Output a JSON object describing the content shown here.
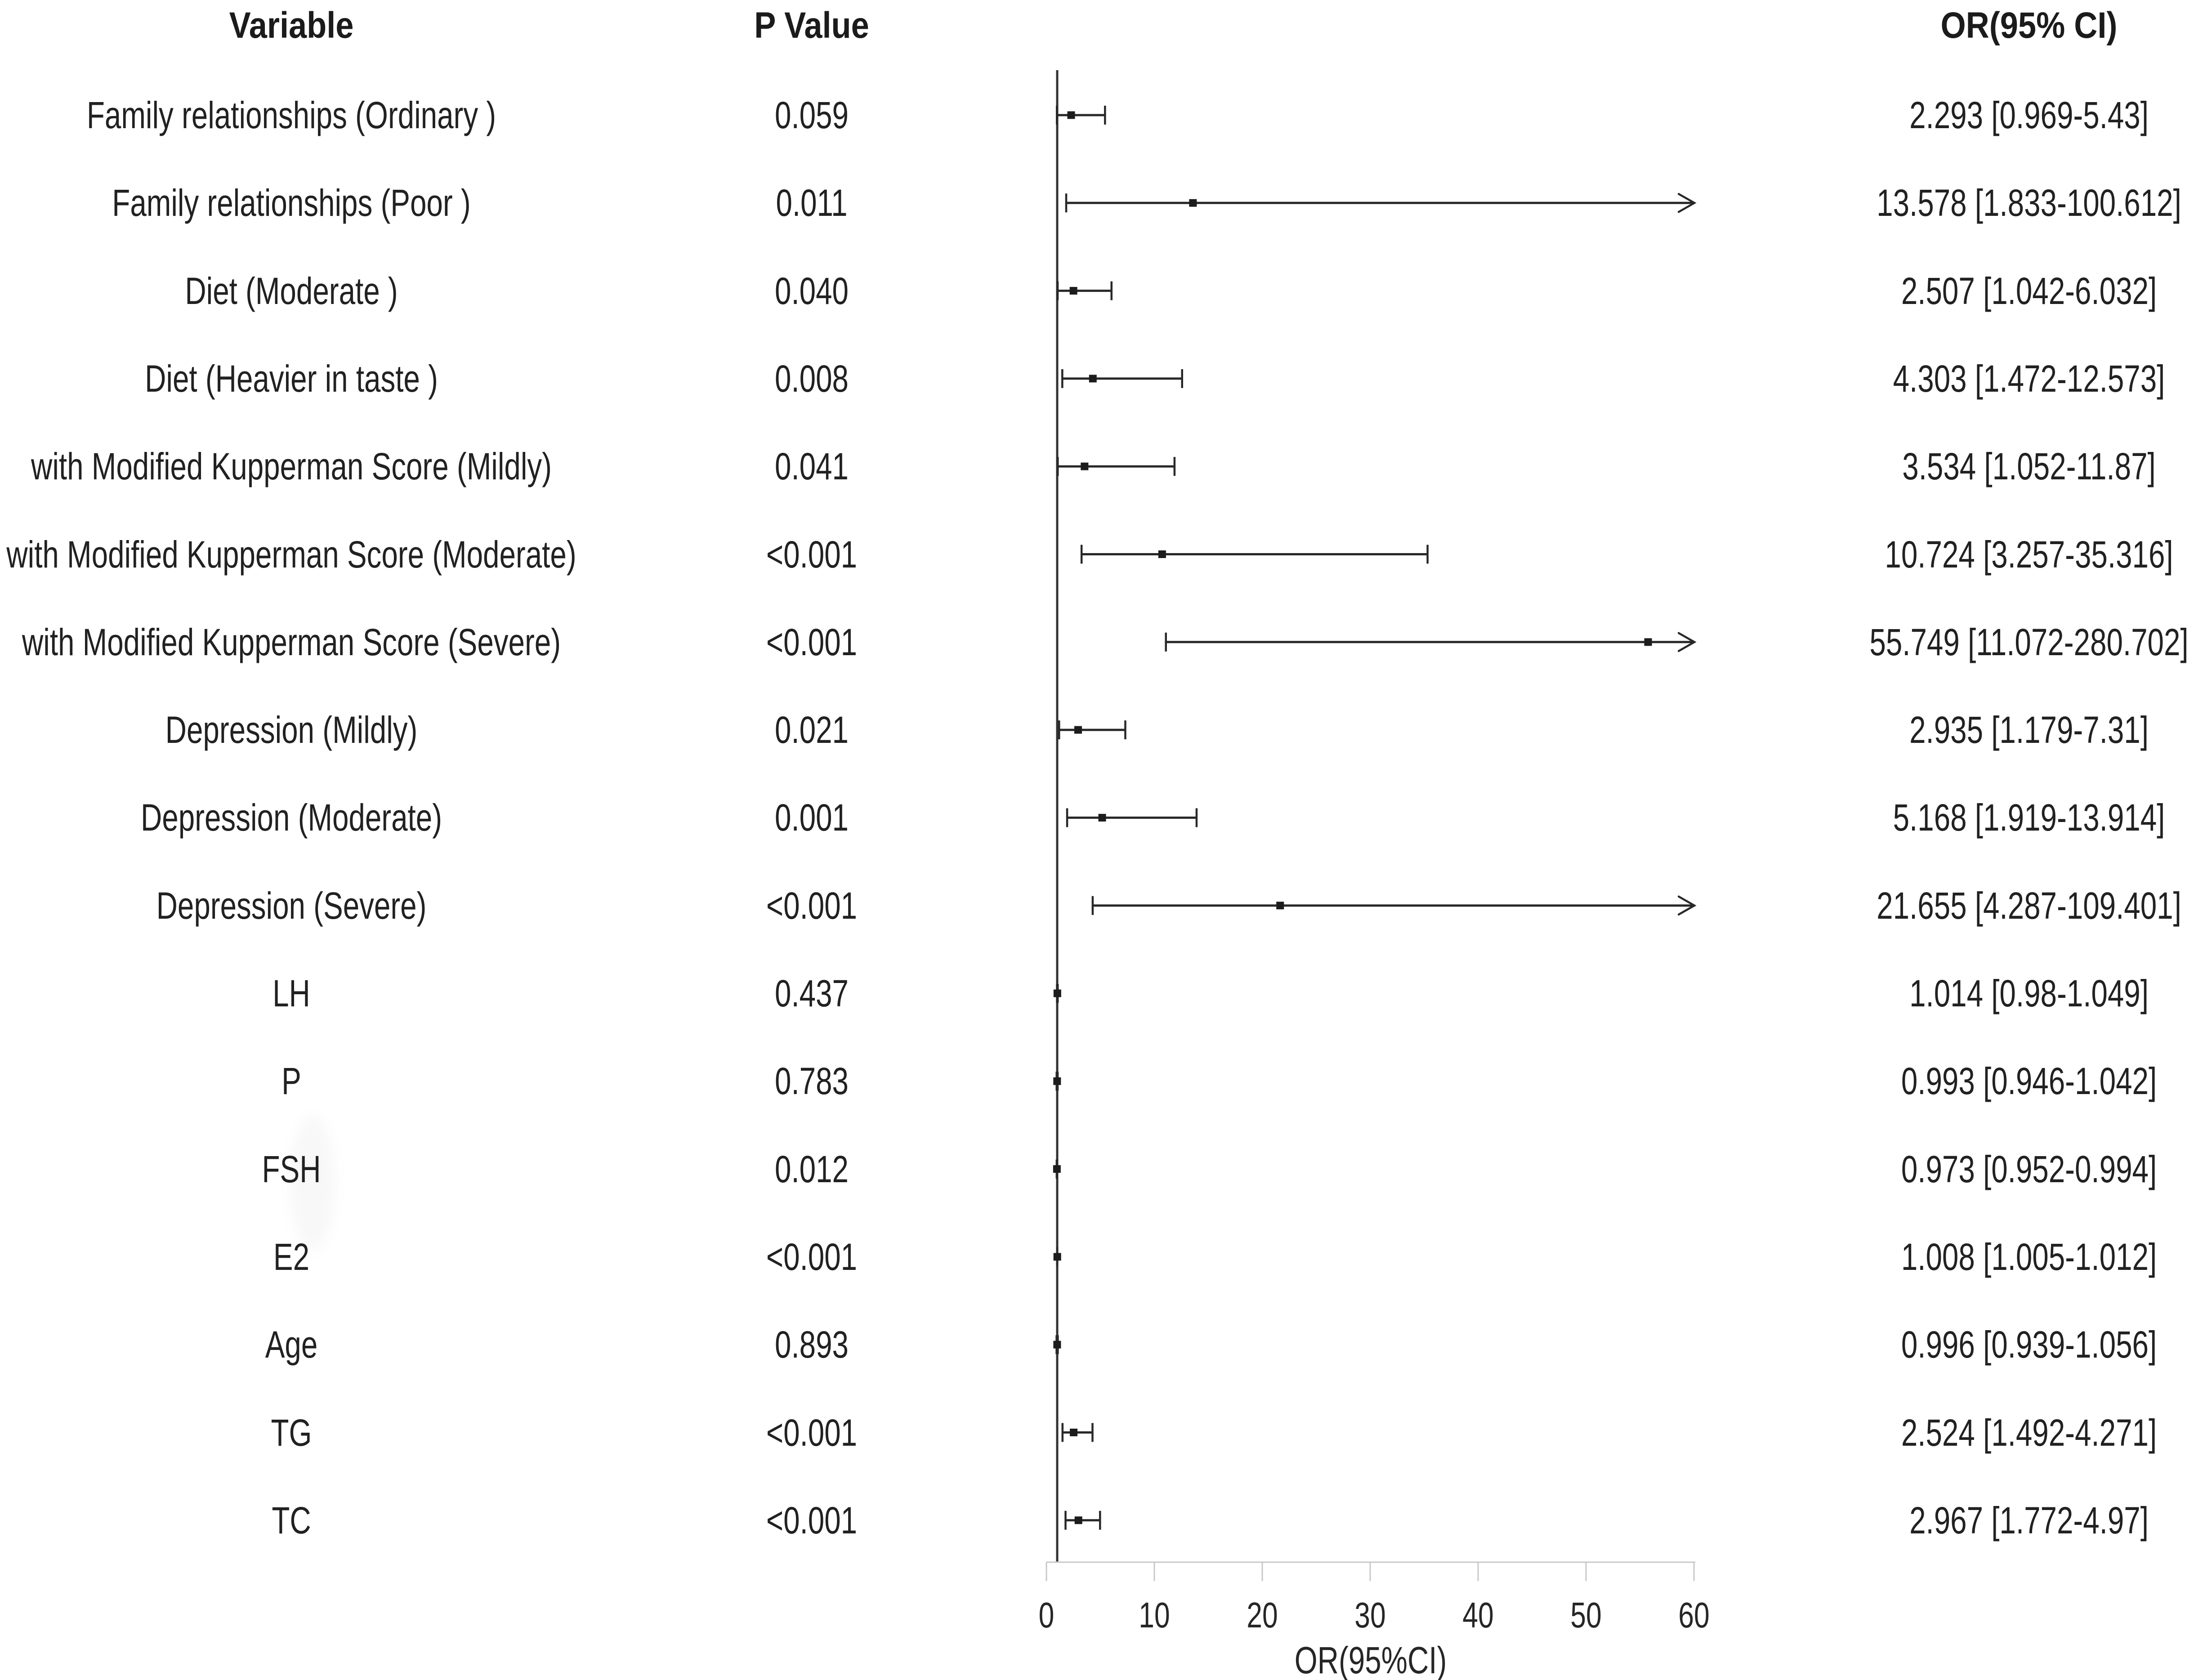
{
  "page": {
    "background": "#ffffff"
  },
  "table": {
    "headers": {
      "variable": "Variable",
      "p_value": "P Value",
      "or_ci": "OR(95% CI)"
    }
  },
  "chart_data": {
    "type": "forest",
    "title": "",
    "xlabel": "OR(95%CI)",
    "xlim": [
      0,
      60
    ],
    "x_ticks": [
      0,
      10,
      20,
      30,
      40,
      50,
      60
    ],
    "reference_value": 1,
    "arrow_clip_at": 60,
    "grid": false,
    "colors": {
      "text": "#212121",
      "bars": "#282828",
      "marker": "#1c1c1c",
      "axis": "#c8c8c8",
      "reference_line": "#333333"
    },
    "series": [
      {
        "variable": "Family relationships (Ordinary )",
        "p_value": "0.059",
        "or": 2.293,
        "ci_low": 0.969,
        "ci_high": 5.43,
        "or_ci_label": "2.293 [0.969-5.43]",
        "clipped": false
      },
      {
        "variable": "Family relationships (Poor )",
        "p_value": "0.011",
        "or": 13.578,
        "ci_low": 1.833,
        "ci_high": 100.612,
        "or_ci_label": "13.578 [1.833-100.612]",
        "clipped": true
      },
      {
        "variable": "Diet (Moderate )",
        "p_value": "0.040",
        "or": 2.507,
        "ci_low": 1.042,
        "ci_high": 6.032,
        "or_ci_label": "2.507 [1.042-6.032]",
        "clipped": false
      },
      {
        "variable": "Diet (Heavier in taste )",
        "p_value": "0.008",
        "or": 4.303,
        "ci_low": 1.472,
        "ci_high": 12.573,
        "or_ci_label": "4.303 [1.472-12.573]",
        "clipped": false
      },
      {
        "variable": "with Modified Kupperman Score (Mildly)",
        "p_value": "0.041",
        "or": 3.534,
        "ci_low": 1.052,
        "ci_high": 11.87,
        "or_ci_label": "3.534 [1.052-11.87]",
        "clipped": false
      },
      {
        "variable": "with Modified Kupperman Score (Moderate)",
        "p_value": "<0.001",
        "or": 10.724,
        "ci_low": 3.257,
        "ci_high": 35.316,
        "or_ci_label": "10.724 [3.257-35.316]",
        "clipped": false
      },
      {
        "variable": "with Modified Kupperman Score (Severe)",
        "p_value": "<0.001",
        "or": 55.749,
        "ci_low": 11.072,
        "ci_high": 280.702,
        "or_ci_label": "55.749 [11.072-280.702]",
        "clipped": true
      },
      {
        "variable": "Depression (Mildly)",
        "p_value": "0.021",
        "or": 2.935,
        "ci_low": 1.179,
        "ci_high": 7.31,
        "or_ci_label": "2.935 [1.179-7.31]",
        "clipped": false
      },
      {
        "variable": "Depression (Moderate)",
        "p_value": "0.001",
        "or": 5.168,
        "ci_low": 1.919,
        "ci_high": 13.914,
        "or_ci_label": "5.168 [1.919-13.914]",
        "clipped": false
      },
      {
        "variable": "Depression (Severe)",
        "p_value": "<0.001",
        "or": 21.655,
        "ci_low": 4.287,
        "ci_high": 109.401,
        "or_ci_label": "21.655 [4.287-109.401]",
        "clipped": true
      },
      {
        "variable": "LH",
        "p_value": "0.437",
        "or": 1.014,
        "ci_low": 0.98,
        "ci_high": 1.049,
        "or_ci_label": "1.014 [0.98-1.049]",
        "clipped": false
      },
      {
        "variable": "P",
        "p_value": "0.783",
        "or": 0.993,
        "ci_low": 0.946,
        "ci_high": 1.042,
        "or_ci_label": "0.993 [0.946-1.042]",
        "clipped": false
      },
      {
        "variable": "FSH",
        "p_value": "0.012",
        "or": 0.973,
        "ci_low": 0.952,
        "ci_high": 0.994,
        "or_ci_label": "0.973 [0.952-0.994]",
        "clipped": false
      },
      {
        "variable": "E2",
        "p_value": "<0.001",
        "or": 1.008,
        "ci_low": 1.005,
        "ci_high": 1.012,
        "or_ci_label": "1.008 [1.005-1.012]",
        "clipped": false
      },
      {
        "variable": "Age",
        "p_value": "0.893",
        "or": 0.996,
        "ci_low": 0.939,
        "ci_high": 1.056,
        "or_ci_label": "0.996 [0.939-1.056]",
        "clipped": false
      },
      {
        "variable": "TG",
        "p_value": "<0.001",
        "or": 2.524,
        "ci_low": 1.492,
        "ci_high": 4.271,
        "or_ci_label": "2.524 [1.492-4.271]",
        "clipped": false
      },
      {
        "variable": "TC",
        "p_value": "<0.001",
        "or": 2.967,
        "ci_low": 1.772,
        "ci_high": 4.97,
        "or_ci_label": "2.967 [1.772-4.97]",
        "clipped": false
      }
    ]
  }
}
